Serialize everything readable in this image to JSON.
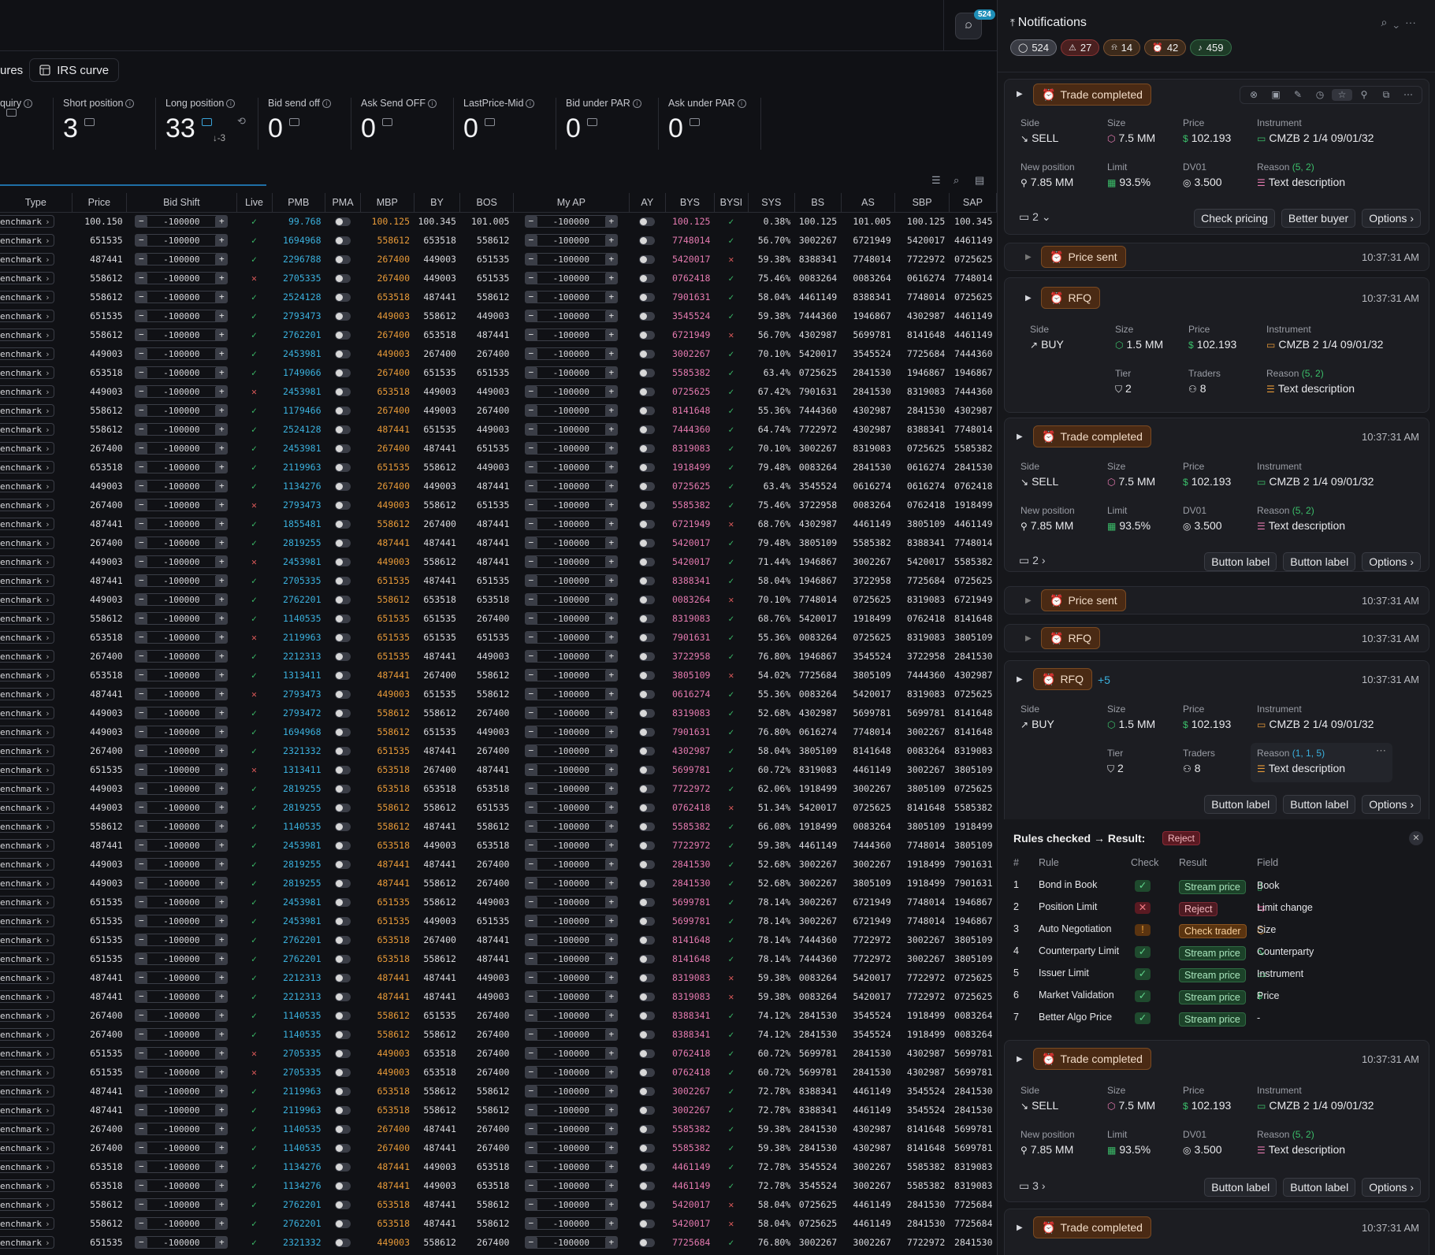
{
  "topbar": {
    "chat_badge": "524"
  },
  "tabs": [
    {
      "label": "ures"
    },
    {
      "label": "IRS curve"
    }
  ],
  "metrics": [
    {
      "label": "quiry",
      "value": ""
    },
    {
      "label": "Short position",
      "value": "3"
    },
    {
      "label": "Long position",
      "value": "33",
      "sub": "↓-3"
    },
    {
      "label": "Bid send off",
      "value": "0"
    },
    {
      "label": "Ask Send OFF",
      "value": "0"
    },
    {
      "label": "LastPrice-Mid",
      "value": "0"
    },
    {
      "label": "Bid under PAR",
      "value": "0"
    },
    {
      "label": "Ask under PAR",
      "value": "0"
    }
  ],
  "table": {
    "headers": [
      "Type",
      "Price",
      "Bid Shift",
      "Live",
      "PMB",
      "PMA",
      "MBP",
      "BY",
      "BOS",
      "My AP",
      "AY",
      "BYS",
      "BYSI",
      "SYS",
      "BS",
      "AS",
      "SBP",
      "SAP"
    ],
    "type_label": "enchmark",
    "stepper_value": "-100000",
    "rows": [
      [
        "100.150",
        "✓",
        "99.768",
        "100.125",
        "100.345",
        "101.005",
        "100.125",
        "✓",
        "0.38%",
        "100.125",
        "101.005",
        "100.125",
        "100.345"
      ],
      [
        "651535",
        "✓",
        "1694968",
        "558612",
        "653518",
        "558612",
        "7748014",
        "✓",
        "56.70%",
        "3002267",
        "6721949",
        "5420017",
        "4461149"
      ],
      [
        "487441",
        "✓",
        "2296788",
        "267400",
        "449003",
        "651535",
        "5420017",
        "✗",
        "59.38%",
        "8388341",
        "7748014",
        "7722972",
        "0725625"
      ],
      [
        "558612",
        "✗",
        "2705335",
        "267400",
        "449003",
        "651535",
        "0762418",
        "✓",
        "75.46%",
        "0083264",
        "0083264",
        "0616274",
        "7748014"
      ],
      [
        "558612",
        "✓",
        "2524128",
        "653518",
        "487441",
        "558612",
        "7901631",
        "✓",
        "58.04%",
        "4461149",
        "8388341",
        "7748014",
        "0725625"
      ],
      [
        "651535",
        "✓",
        "2793473",
        "449003",
        "558612",
        "449003",
        "3545524",
        "✓",
        "59.38%",
        "7444360",
        "1946867",
        "4302987",
        "4461149"
      ],
      [
        "558612",
        "✓",
        "2762201",
        "267400",
        "653518",
        "487441",
        "6721949",
        "✗",
        "56.70%",
        "4302987",
        "5699781",
        "8141648",
        "4461149"
      ],
      [
        "449003",
        "✓",
        "2453981",
        "449003",
        "267400",
        "267400",
        "3002267",
        "✓",
        "70.10%",
        "5420017",
        "3545524",
        "7725684",
        "7444360"
      ],
      [
        "653518",
        "✓",
        "1749066",
        "267400",
        "651535",
        "651535",
        "5585382",
        "✓",
        "63.4%",
        "0725625",
        "2841530",
        "1946867",
        "1946867"
      ],
      [
        "449003",
        "✗",
        "2453981",
        "653518",
        "449003",
        "449003",
        "0725625",
        "✓",
        "67.42%",
        "7901631",
        "2841530",
        "8319083",
        "7444360"
      ],
      [
        "558612",
        "✓",
        "1179466",
        "267400",
        "449003",
        "267400",
        "8141648",
        "✓",
        "55.36%",
        "7444360",
        "4302987",
        "2841530",
        "4302987"
      ],
      [
        "558612",
        "✓",
        "2524128",
        "487441",
        "651535",
        "449003",
        "7444360",
        "✓",
        "64.74%",
        "7722972",
        "4302987",
        "8388341",
        "7748014"
      ],
      [
        "267400",
        "✓",
        "2453981",
        "267400",
        "487441",
        "651535",
        "8319083",
        "✓",
        "70.10%",
        "3002267",
        "8319083",
        "0725625",
        "5585382"
      ],
      [
        "653518",
        "✓",
        "2119963",
        "651535",
        "558612",
        "449003",
        "1918499",
        "✓",
        "79.48%",
        "0083264",
        "2841530",
        "0616274",
        "2841530"
      ],
      [
        "449003",
        "✓",
        "1134276",
        "267400",
        "449003",
        "487441",
        "0725625",
        "✓",
        "63.4%",
        "3545524",
        "0616274",
        "0616274",
        "0762418"
      ],
      [
        "267400",
        "✗",
        "2793473",
        "449003",
        "558612",
        "651535",
        "5585382",
        "✓",
        "75.46%",
        "3722958",
        "0083264",
        "0762418",
        "1918499"
      ],
      [
        "487441",
        "✓",
        "1855481",
        "558612",
        "267400",
        "487441",
        "6721949",
        "✗",
        "68.76%",
        "4302987",
        "4461149",
        "3805109",
        "4461149"
      ],
      [
        "267400",
        "✓",
        "2819255",
        "487441",
        "487441",
        "487441",
        "5420017",
        "✓",
        "79.48%",
        "3805109",
        "5585382",
        "8388341",
        "7748014"
      ],
      [
        "449003",
        "✗",
        "2453981",
        "449003",
        "558612",
        "487441",
        "5420017",
        "✓",
        "71.44%",
        "1946867",
        "3002267",
        "5420017",
        "5585382"
      ],
      [
        "487441",
        "✓",
        "2705335",
        "651535",
        "487441",
        "651535",
        "8388341",
        "✓",
        "58.04%",
        "1946867",
        "3722958",
        "7725684",
        "0725625"
      ],
      [
        "449003",
        "✓",
        "2762201",
        "558612",
        "653518",
        "653518",
        "0083264",
        "✗",
        "70.10%",
        "7748014",
        "0725625",
        "8319083",
        "6721949"
      ],
      [
        "558612",
        "✓",
        "1140535",
        "651535",
        "651535",
        "267400",
        "8319083",
        "✓",
        "68.76%",
        "5420017",
        "1918499",
        "0762418",
        "8141648"
      ],
      [
        "653518",
        "✗",
        "2119963",
        "651535",
        "651535",
        "651535",
        "7901631",
        "✓",
        "55.36%",
        "0083264",
        "0725625",
        "8319083",
        "3805109"
      ],
      [
        "267400",
        "✓",
        "2212313",
        "651535",
        "487441",
        "449003",
        "3722958",
        "✓",
        "76.80%",
        "1946867",
        "3545524",
        "3722958",
        "2841530"
      ],
      [
        "653518",
        "✓",
        "1313411",
        "487441",
        "267400",
        "558612",
        "3805109",
        "✗",
        "54.02%",
        "7725684",
        "3805109",
        "7444360",
        "4302987"
      ],
      [
        "487441",
        "✗",
        "2793473",
        "449003",
        "651535",
        "558612",
        "0616274",
        "✓",
        "55.36%",
        "0083264",
        "5420017",
        "8319083",
        "0725625"
      ],
      [
        "449003",
        "✓",
        "2793472",
        "558612",
        "558612",
        "267400",
        "8319083",
        "✓",
        "52.68%",
        "4302987",
        "5699781",
        "5699781",
        "8141648"
      ],
      [
        "449003",
        "✓",
        "1694968",
        "558612",
        "651535",
        "449003",
        "7901631",
        "✓",
        "76.80%",
        "0616274",
        "7748014",
        "3002267",
        "8141648"
      ],
      [
        "267400",
        "✓",
        "2321332",
        "651535",
        "487441",
        "267400",
        "4302987",
        "✓",
        "58.04%",
        "3805109",
        "8141648",
        "0083264",
        "8319083"
      ],
      [
        "651535",
        "✗",
        "1313411",
        "653518",
        "267400",
        "487441",
        "5699781",
        "✓",
        "60.72%",
        "8319083",
        "4461149",
        "3002267",
        "3805109"
      ],
      [
        "449003",
        "✓",
        "2819255",
        "653518",
        "653518",
        "653518",
        "7722972",
        "✓",
        "62.06%",
        "1918499",
        "3002267",
        "3805109",
        "0725625"
      ],
      [
        "449003",
        "✓",
        "2819255",
        "558612",
        "558612",
        "651535",
        "0762418",
        "✗",
        "51.34%",
        "5420017",
        "0725625",
        "8141648",
        "5585382"
      ],
      [
        "558612",
        "✓",
        "1140535",
        "558612",
        "487441",
        "558612",
        "5585382",
        "✓",
        "66.08%",
        "1918499",
        "0083264",
        "3805109",
        "1918499"
      ],
      [
        "487441",
        "✓",
        "2453981",
        "653518",
        "449003",
        "653518",
        "7722972",
        "✓",
        "59.38%",
        "4461149",
        "7444360",
        "7748014",
        "3805109"
      ],
      [
        "449003",
        "✓",
        "2819255",
        "487441",
        "487441",
        "267400",
        "2841530",
        "✓",
        "52.68%",
        "3002267",
        "3002267",
        "1918499",
        "7901631"
      ],
      [
        "449003",
        "✓",
        "2819255",
        "487441",
        "558612",
        "267400",
        "2841530",
        "✓",
        "52.68%",
        "3002267",
        "3805109",
        "1918499",
        "7901631"
      ],
      [
        "651535",
        "✓",
        "2453981",
        "651535",
        "558612",
        "449003",
        "5699781",
        "✓",
        "78.14%",
        "3002267",
        "6721949",
        "7748014",
        "1946867"
      ],
      [
        "651535",
        "✓",
        "2453981",
        "651535",
        "449003",
        "651535",
        "5699781",
        "✓",
        "78.14%",
        "3002267",
        "6721949",
        "7748014",
        "1946867"
      ],
      [
        "651535",
        "✓",
        "2762201",
        "653518",
        "267400",
        "487441",
        "8141648",
        "✓",
        "78.14%",
        "7444360",
        "7722972",
        "3002267",
        "3805109"
      ],
      [
        "651535",
        "✓",
        "2762201",
        "653518",
        "558612",
        "487441",
        "8141648",
        "✓",
        "78.14%",
        "7444360",
        "7722972",
        "3002267",
        "3805109"
      ],
      [
        "487441",
        "✓",
        "2212313",
        "487441",
        "487441",
        "449003",
        "8319083",
        "✗",
        "59.38%",
        "0083264",
        "5420017",
        "7722972",
        "0725625"
      ],
      [
        "487441",
        "✓",
        "2212313",
        "487441",
        "487441",
        "449003",
        "8319083",
        "✗",
        "59.38%",
        "0083264",
        "5420017",
        "7722972",
        "0725625"
      ],
      [
        "267400",
        "✓",
        "1140535",
        "558612",
        "651535",
        "267400",
        "8388341",
        "✓",
        "74.12%",
        "2841530",
        "3545524",
        "1918499",
        "0083264"
      ],
      [
        "267400",
        "✓",
        "1140535",
        "558612",
        "558612",
        "267400",
        "8388341",
        "✓",
        "74.12%",
        "2841530",
        "3545524",
        "1918499",
        "0083264"
      ],
      [
        "651535",
        "✗",
        "2705335",
        "449003",
        "653518",
        "267400",
        "0762418",
        "✓",
        "60.72%",
        "5699781",
        "2841530",
        "4302987",
        "5699781"
      ],
      [
        "651535",
        "✗",
        "2705335",
        "449003",
        "653518",
        "267400",
        "0762418",
        "✓",
        "60.72%",
        "5699781",
        "2841530",
        "4302987",
        "5699781"
      ],
      [
        "487441",
        "✓",
        "2119963",
        "653518",
        "558612",
        "558612",
        "3002267",
        "✓",
        "72.78%",
        "8388341",
        "4461149",
        "3545524",
        "2841530"
      ],
      [
        "487441",
        "✓",
        "2119963",
        "653518",
        "558612",
        "558612",
        "3002267",
        "✓",
        "72.78%",
        "8388341",
        "4461149",
        "3545524",
        "2841530"
      ],
      [
        "267400",
        "✓",
        "1140535",
        "267400",
        "487441",
        "267400",
        "5585382",
        "✓",
        "59.38%",
        "2841530",
        "4302987",
        "8141648",
        "5699781"
      ],
      [
        "267400",
        "✓",
        "1140535",
        "267400",
        "487441",
        "267400",
        "5585382",
        "✓",
        "59.38%",
        "2841530",
        "4302987",
        "8141648",
        "5699781"
      ],
      [
        "653518",
        "✓",
        "1134276",
        "487441",
        "449003",
        "653518",
        "4461149",
        "✓",
        "72.78%",
        "3545524",
        "3002267",
        "5585382",
        "8319083"
      ],
      [
        "653518",
        "✓",
        "1134276",
        "487441",
        "449003",
        "653518",
        "4461149",
        "✓",
        "72.78%",
        "3545524",
        "3002267",
        "5585382",
        "8319083"
      ],
      [
        "558612",
        "✓",
        "2762201",
        "653518",
        "487441",
        "558612",
        "5420017",
        "✗",
        "58.04%",
        "0725625",
        "4461149",
        "2841530",
        "7725684"
      ],
      [
        "558612",
        "✓",
        "2762201",
        "653518",
        "487441",
        "558612",
        "5420017",
        "✗",
        "58.04%",
        "0725625",
        "4461149",
        "2841530",
        "7725684"
      ],
      [
        "651535",
        "✓",
        "2321332",
        "449003",
        "558612",
        "267400",
        "7725684",
        "✓",
        "76.80%",
        "3002267",
        "3002267",
        "7722972",
        "2841530"
      ]
    ]
  },
  "notifications": {
    "title": "Notifications",
    "chips": [
      {
        "icon": "chat-icon",
        "count": "524"
      },
      {
        "icon": "warning-icon",
        "count": "27"
      },
      {
        "icon": "bell-alert-icon",
        "count": "14"
      },
      {
        "icon": "alarm-icon",
        "count": "42"
      },
      {
        "icon": "bell-icon",
        "count": "459"
      }
    ],
    "labels": {
      "side": "Side",
      "size": "Size",
      "price": "Price",
      "instrument": "Instrument",
      "new_position": "New position",
      "limit": "Limit",
      "dv01": "DV01",
      "reason": "Reason",
      "tier": "Tier",
      "traders": "Traders"
    },
    "values": {
      "sell": "SELL",
      "buy": "BUY",
      "size_75": "7.5 MM",
      "size_15": "1.5 MM",
      "price": "102.193",
      "instrument": "CMZB 2 1/4 09/01/32",
      "new_position": "7.85 MM",
      "limit": "93.5%",
      "dv01": "3.500",
      "reason_text": "Text description",
      "reason_codes": "(5, 2)",
      "reason_codes2": "(1, 1, 5)",
      "tier": "2",
      "traders": "8"
    },
    "time": "10:37:31 AM",
    "pills": {
      "trade_completed": "Trade completed",
      "price_sent": "Price sent",
      "rfq": "RFQ",
      "plus": "+5"
    },
    "buttons": {
      "check_pricing": "Check pricing",
      "better_buyer": "Better buyer",
      "options": "Options",
      "button_label": "Button label"
    },
    "counts": [
      "2",
      "2",
      "3"
    ],
    "rules": {
      "title": "Rules checked",
      "result_label": "Result:",
      "result": "Reject",
      "headers": [
        "#",
        "Rule",
        "Check",
        "Result",
        "Field"
      ],
      "rows": [
        {
          "n": "1",
          "rule": "Bond in Book",
          "check": "ok",
          "result": "Stream price",
          "field": "Book"
        },
        {
          "n": "2",
          "rule": "Position Limit",
          "check": "fail",
          "result": "Reject",
          "field": "Limit change"
        },
        {
          "n": "3",
          "rule": "Auto Negotiation",
          "check": "warn",
          "result": "Check trader",
          "field": "Size"
        },
        {
          "n": "4",
          "rule": "Counterparty Limit",
          "check": "ok",
          "result": "Stream price",
          "field": "Counterparty"
        },
        {
          "n": "5",
          "rule": "Issuer Limit",
          "check": "ok",
          "result": "Stream price",
          "field": "Instrument"
        },
        {
          "n": "6",
          "rule": "Market Validation",
          "check": "ok",
          "result": "Stream price",
          "field": "Price"
        },
        {
          "n": "7",
          "rule": "Better Algo Price",
          "check": "ok",
          "result": "Stream price",
          "field": "-"
        }
      ]
    }
  }
}
